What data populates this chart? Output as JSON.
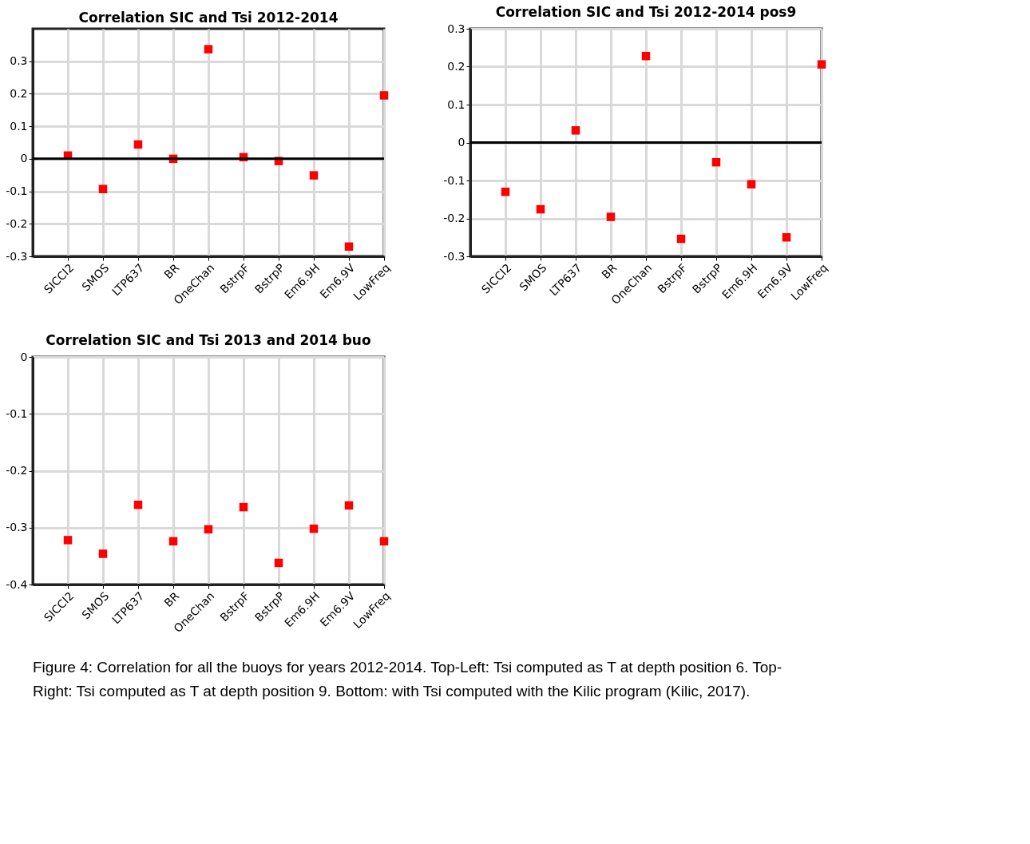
{
  "chart_data": [
    {
      "type": "scatter",
      "title": "Correlation SIC and Tsi 2012-2014",
      "categories": [
        "SICCI2",
        "SMOS",
        "LTP637",
        "BR",
        "OneChan",
        "BstrpF",
        "BstrpP",
        "Em6.9H",
        "Em6.9V",
        "LowFreq"
      ],
      "series": [
        {
          "color": "#ff0000",
          "values": [
            0.01,
            -0.093,
            0.044,
            0.0,
            0.337,
            0.005,
            -0.007,
            -0.051,
            -0.27,
            0.195
          ]
        }
      ],
      "ylim": [
        -0.3,
        0.4
      ],
      "yticks": [
        -0.3,
        -0.2,
        -0.1,
        0,
        0.1,
        0.2,
        0.3
      ],
      "grid": true,
      "marker": "square",
      "legend": false,
      "ref_lines": [
        {
          "axis": "y",
          "value": 0,
          "color": "#000000"
        }
      ]
    },
    {
      "type": "scatter",
      "title": "Correlation SIC and Tsi 2012-2014 pos9",
      "categories": [
        "SICCI2",
        "SMOS",
        "LTP637",
        "BR",
        "OneChan",
        "BstrpF",
        "BstrpP",
        "Em6.9H",
        "Em6.9V",
        "LowFreq"
      ],
      "series": [
        {
          "color": "#ff0000",
          "values": [
            -0.13,
            -0.176,
            0.032,
            -0.196,
            0.228,
            -0.254,
            -0.052,
            -0.11,
            -0.25,
            0.206
          ]
        }
      ],
      "ylim": [
        -0.3,
        0.3
      ],
      "yticks": [
        -0.3,
        -0.2,
        -0.1,
        0,
        0.1,
        0.2,
        0.3
      ],
      "grid": true,
      "marker": "square",
      "legend": false,
      "ref_lines": [
        {
          "axis": "y",
          "value": 0,
          "color": "#000000"
        }
      ]
    },
    {
      "type": "scatter",
      "title": "Correlation SIC and Tsi 2013 and 2014 buo",
      "categories": [
        "SICCI2",
        "SMOS",
        "LTP637",
        "BR",
        "OneChan",
        "BstrpF",
        "BstrpP",
        "Em6.9H",
        "Em6.9V",
        "LowFreq"
      ],
      "series": [
        {
          "color": "#ff0000",
          "values": [
            -0.322,
            -0.346,
            -0.26,
            -0.324,
            -0.303,
            -0.264,
            -0.362,
            -0.302,
            -0.261,
            -0.324
          ]
        }
      ],
      "ylim": [
        -0.4,
        0
      ],
      "yticks": [
        -0.4,
        -0.3,
        -0.2,
        -0.1,
        0
      ],
      "grid": true,
      "marker": "square",
      "legend": false,
      "annotations": [
        "Figure 4: Correlation for all the buoys for years 2012-2014. Top-Left: Tsi computed as T at depth position 6. Top-Right:  Tsi computed as T at depth position 9. Bottom: with Tsi computed with the Kilic program (Kilic, 2017)."
      ]
    }
  ]
}
